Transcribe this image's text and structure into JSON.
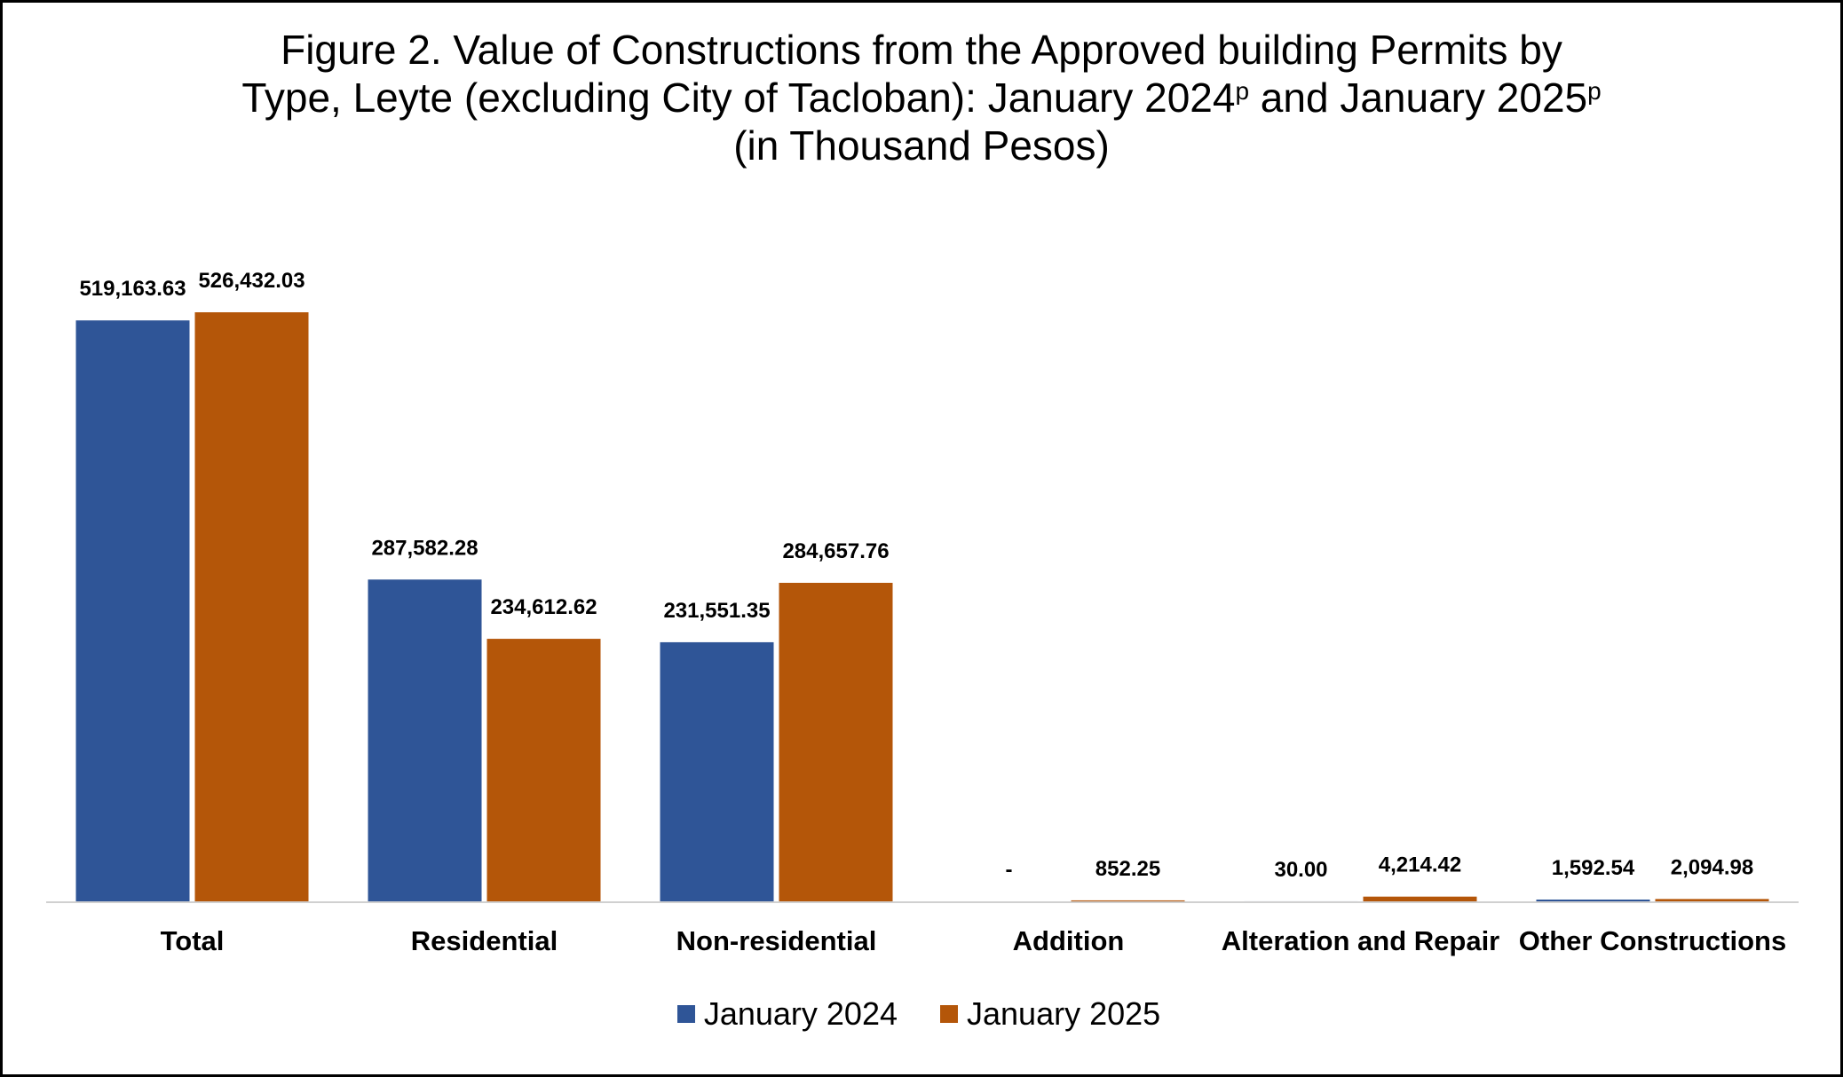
{
  "chart_data": {
    "type": "bar",
    "title_lines": [
      "Figure 2. Value of Constructions from the Approved building Permits by",
      "Type, Leyte (excluding City of Tacloban): January 2024",
      "p",
      " and January 2025",
      "p",
      "(in Thousand Pesos)"
    ],
    "categories": [
      "Total",
      "Residential",
      "Non-residential",
      "Addition",
      "Alteration and Repair",
      "Other Constructions"
    ],
    "series": [
      {
        "name": "January 2024",
        "color": "#2F5597",
        "values": [
          519163.63,
          287582.28,
          231551.35,
          0,
          30.0,
          1592.54
        ],
        "labels": [
          "519,163.63",
          "287,582.28",
          "231,551.35",
          "-",
          "30.00",
          "1,592.54"
        ]
      },
      {
        "name": "January 2025",
        "color": "#B45609",
        "values": [
          526432.03,
          234612.62,
          284657.76,
          852.25,
          4214.42,
          2094.98
        ],
        "labels": [
          "526,432.03",
          "234,612.62",
          "284,657.76",
          "852.25",
          "4,214.42",
          "2,094.98"
        ]
      }
    ],
    "ylim": [
      0,
      526432.03
    ],
    "grid": false,
    "legend_position": "bottom"
  }
}
